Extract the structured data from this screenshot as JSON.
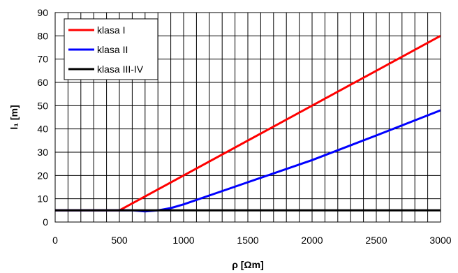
{
  "chart_data": {
    "type": "line",
    "title": "",
    "xlabel": "ρ [Ωm]",
    "ylabel": "l₁ [m]",
    "xlim": [
      0,
      3000
    ],
    "ylim": [
      0,
      90
    ],
    "x_ticks": [
      0,
      500,
      1000,
      1500,
      2000,
      2500,
      3000
    ],
    "y_ticks": [
      0,
      10,
      20,
      30,
      40,
      50,
      60,
      70,
      80,
      90
    ],
    "grid": true,
    "legend_position": "top-left",
    "series": [
      {
        "name": "klasa I",
        "color": "#ff0000",
        "points": [
          [
            0,
            5
          ],
          [
            500,
            5
          ],
          [
            3000,
            80
          ]
        ]
      },
      {
        "name": "klasa II",
        "color": "#0000ff",
        "points": [
          [
            0,
            5
          ],
          [
            600,
            5
          ],
          [
            700,
            4.6
          ],
          [
            800,
            5
          ],
          [
            900,
            6
          ],
          [
            1000,
            7.6
          ],
          [
            1200,
            11.4
          ],
          [
            1500,
            17.1
          ],
          [
            2000,
            26.6
          ],
          [
            2500,
            37.2
          ],
          [
            3000,
            48
          ]
        ]
      },
      {
        "name": "klasa III-IV",
        "color": "#000000",
        "points": [
          [
            0,
            5
          ],
          [
            3000,
            5
          ]
        ]
      }
    ]
  }
}
